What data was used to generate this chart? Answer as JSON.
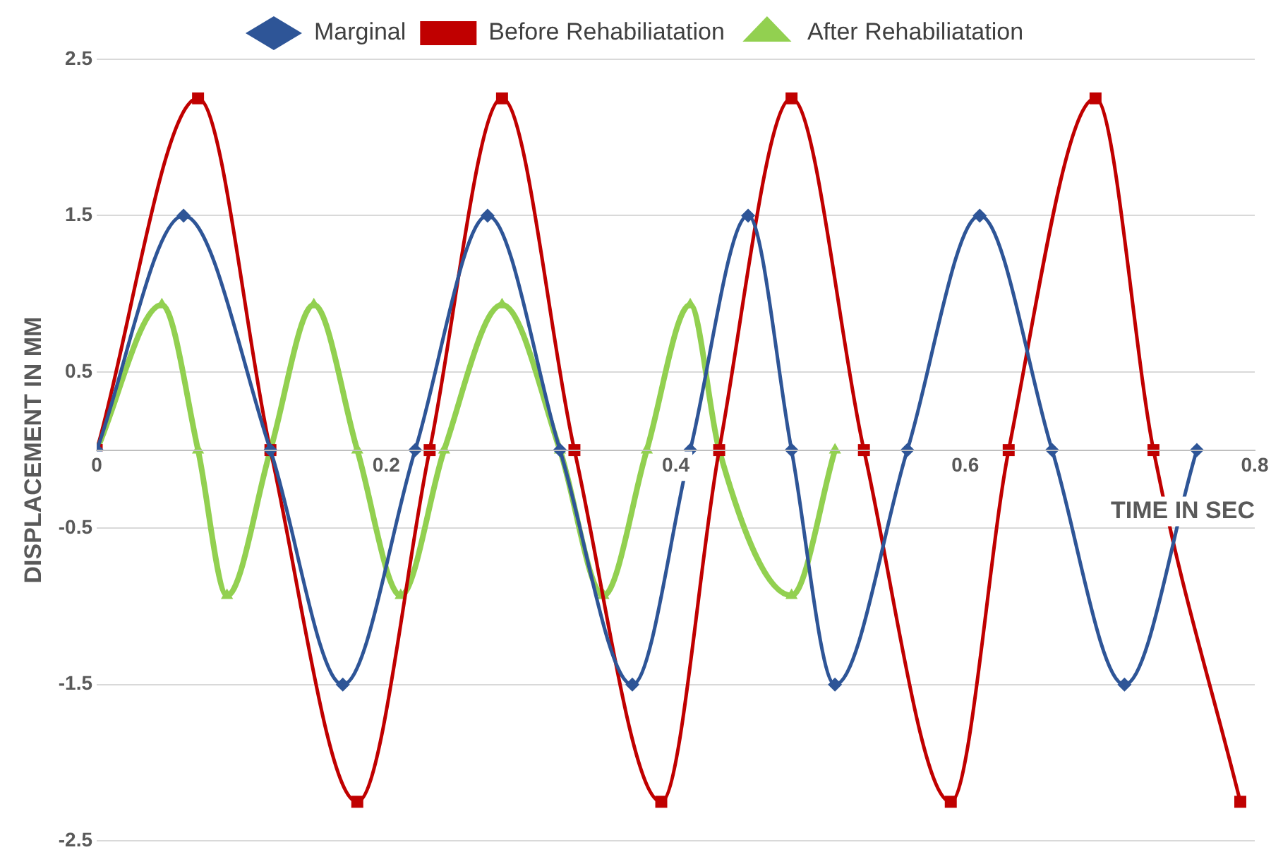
{
  "chart_data": {
    "type": "line",
    "xlabel": "TIME IN SEC",
    "ylabel": "DISPLACEMENT IN MM",
    "xlim": [
      0,
      0.8
    ],
    "xticks": [
      0,
      0.2,
      0.4,
      0.6,
      0.8
    ],
    "ylim": [
      -2.5,
      2.5
    ],
    "yticks": [
      -2.5,
      -1.5,
      -0.5,
      0.5,
      1.5,
      2.5
    ],
    "grid": "y",
    "legend": "top",
    "line_style": "solid",
    "series": [
      {
        "name": "Marginal",
        "color": "#2e5597",
        "marker": "diamond",
        "x": [
          0,
          0.06,
          0.12,
          0.17,
          0.22,
          0.27,
          0.32,
          0.37,
          0.41,
          0.45,
          0.48,
          0.51,
          0.56,
          0.61,
          0.66,
          0.71,
          0.76
        ],
        "values": [
          0,
          1.5,
          0,
          -1.5,
          0,
          1.5,
          0,
          -1.5,
          0,
          1.5,
          0,
          -1.5,
          0,
          1.5,
          0,
          -1.5,
          0
        ]
      },
      {
        "name": "Before Rehabiliatation",
        "color": "#c00000",
        "marker": "square",
        "x": [
          0,
          0.07,
          0.12,
          0.18,
          0.23,
          0.28,
          0.33,
          0.39,
          0.43,
          0.48,
          0.53,
          0.59,
          0.63,
          0.69,
          0.73,
          0.79
        ],
        "values": [
          0,
          2.25,
          0,
          -2.25,
          0,
          2.25,
          0,
          -2.25,
          0,
          2.25,
          0,
          -2.25,
          0,
          2.25,
          0,
          -2.25
        ]
      },
      {
        "name": "After Rehabiliatation",
        "color": "#92d050",
        "marker": "triangle",
        "x": [
          0,
          0.045,
          0.07,
          0.09,
          0.12,
          0.15,
          0.18,
          0.21,
          0.24,
          0.28,
          0.32,
          0.35,
          0.38,
          0.41,
          0.43,
          0.48,
          0.51
        ],
        "values": [
          0,
          0.93,
          0,
          -0.93,
          0,
          0.93,
          0,
          -0.93,
          0,
          0.93,
          0,
          -0.93,
          0,
          0.93,
          0,
          -0.93,
          0
        ]
      }
    ]
  }
}
